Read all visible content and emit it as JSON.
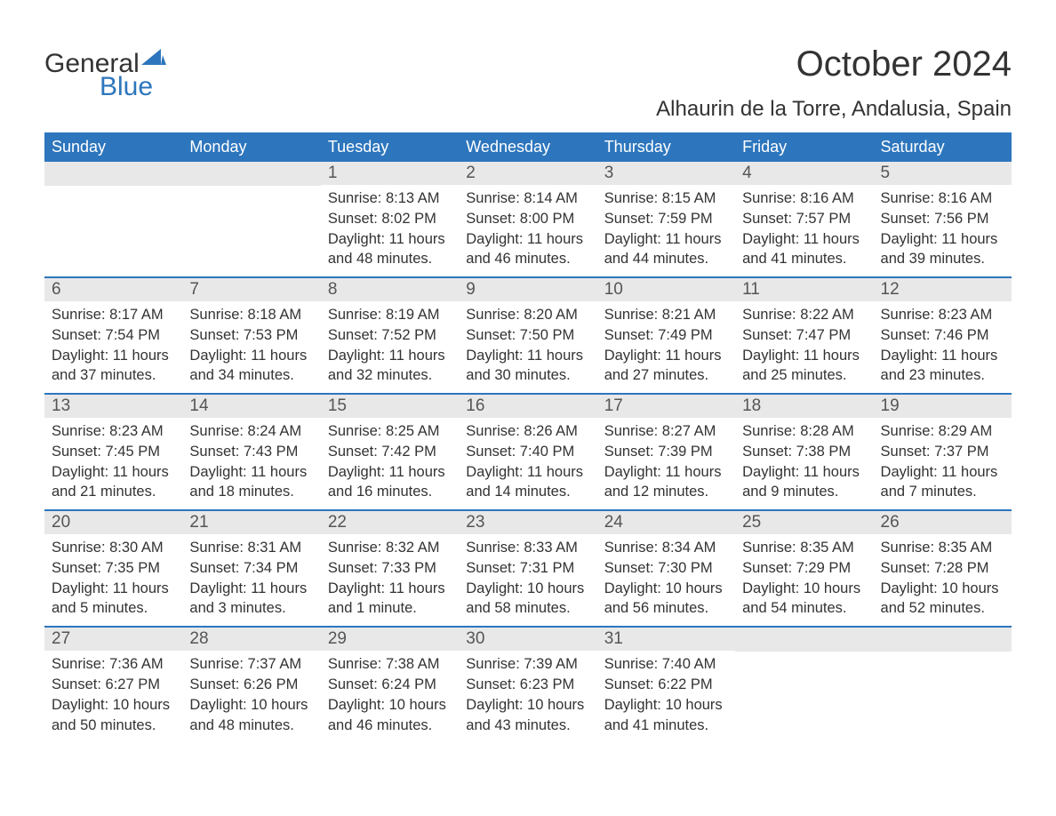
{
  "logo": {
    "text_general": "General",
    "text_blue": "Blue",
    "sail_color": "#2d76bd"
  },
  "title": "October 2024",
  "location": "Alhaurin de la Torre, Andalusia, Spain",
  "colors": {
    "header_bg": "#2d76bd",
    "header_text": "#ffffff",
    "daynum_bg": "#e8e8e8",
    "body_text": "#333333",
    "row_border": "#2d76bd"
  },
  "day_headers": [
    "Sunday",
    "Monday",
    "Tuesday",
    "Wednesday",
    "Thursday",
    "Friday",
    "Saturday"
  ],
  "weeks": [
    [
      {
        "num": "",
        "sunrise": "",
        "sunset": "",
        "daylight": ""
      },
      {
        "num": "",
        "sunrise": "",
        "sunset": "",
        "daylight": ""
      },
      {
        "num": "1",
        "sunrise": "Sunrise: 8:13 AM",
        "sunset": "Sunset: 8:02 PM",
        "daylight": "Daylight: 11 hours and 48 minutes."
      },
      {
        "num": "2",
        "sunrise": "Sunrise: 8:14 AM",
        "sunset": "Sunset: 8:00 PM",
        "daylight": "Daylight: 11 hours and 46 minutes."
      },
      {
        "num": "3",
        "sunrise": "Sunrise: 8:15 AM",
        "sunset": "Sunset: 7:59 PM",
        "daylight": "Daylight: 11 hours and 44 minutes."
      },
      {
        "num": "4",
        "sunrise": "Sunrise: 8:16 AM",
        "sunset": "Sunset: 7:57 PM",
        "daylight": "Daylight: 11 hours and 41 minutes."
      },
      {
        "num": "5",
        "sunrise": "Sunrise: 8:16 AM",
        "sunset": "Sunset: 7:56 PM",
        "daylight": "Daylight: 11 hours and 39 minutes."
      }
    ],
    [
      {
        "num": "6",
        "sunrise": "Sunrise: 8:17 AM",
        "sunset": "Sunset: 7:54 PM",
        "daylight": "Daylight: 11 hours and 37 minutes."
      },
      {
        "num": "7",
        "sunrise": "Sunrise: 8:18 AM",
        "sunset": "Sunset: 7:53 PM",
        "daylight": "Daylight: 11 hours and 34 minutes."
      },
      {
        "num": "8",
        "sunrise": "Sunrise: 8:19 AM",
        "sunset": "Sunset: 7:52 PM",
        "daylight": "Daylight: 11 hours and 32 minutes."
      },
      {
        "num": "9",
        "sunrise": "Sunrise: 8:20 AM",
        "sunset": "Sunset: 7:50 PM",
        "daylight": "Daylight: 11 hours and 30 minutes."
      },
      {
        "num": "10",
        "sunrise": "Sunrise: 8:21 AM",
        "sunset": "Sunset: 7:49 PM",
        "daylight": "Daylight: 11 hours and 27 minutes."
      },
      {
        "num": "11",
        "sunrise": "Sunrise: 8:22 AM",
        "sunset": "Sunset: 7:47 PM",
        "daylight": "Daylight: 11 hours and 25 minutes."
      },
      {
        "num": "12",
        "sunrise": "Sunrise: 8:23 AM",
        "sunset": "Sunset: 7:46 PM",
        "daylight": "Daylight: 11 hours and 23 minutes."
      }
    ],
    [
      {
        "num": "13",
        "sunrise": "Sunrise: 8:23 AM",
        "sunset": "Sunset: 7:45 PM",
        "daylight": "Daylight: 11 hours and 21 minutes."
      },
      {
        "num": "14",
        "sunrise": "Sunrise: 8:24 AM",
        "sunset": "Sunset: 7:43 PM",
        "daylight": "Daylight: 11 hours and 18 minutes."
      },
      {
        "num": "15",
        "sunrise": "Sunrise: 8:25 AM",
        "sunset": "Sunset: 7:42 PM",
        "daylight": "Daylight: 11 hours and 16 minutes."
      },
      {
        "num": "16",
        "sunrise": "Sunrise: 8:26 AM",
        "sunset": "Sunset: 7:40 PM",
        "daylight": "Daylight: 11 hours and 14 minutes."
      },
      {
        "num": "17",
        "sunrise": "Sunrise: 8:27 AM",
        "sunset": "Sunset: 7:39 PM",
        "daylight": "Daylight: 11 hours and 12 minutes."
      },
      {
        "num": "18",
        "sunrise": "Sunrise: 8:28 AM",
        "sunset": "Sunset: 7:38 PM",
        "daylight": "Daylight: 11 hours and 9 minutes."
      },
      {
        "num": "19",
        "sunrise": "Sunrise: 8:29 AM",
        "sunset": "Sunset: 7:37 PM",
        "daylight": "Daylight: 11 hours and 7 minutes."
      }
    ],
    [
      {
        "num": "20",
        "sunrise": "Sunrise: 8:30 AM",
        "sunset": "Sunset: 7:35 PM",
        "daylight": "Daylight: 11 hours and 5 minutes."
      },
      {
        "num": "21",
        "sunrise": "Sunrise: 8:31 AM",
        "sunset": "Sunset: 7:34 PM",
        "daylight": "Daylight: 11 hours and 3 minutes."
      },
      {
        "num": "22",
        "sunrise": "Sunrise: 8:32 AM",
        "sunset": "Sunset: 7:33 PM",
        "daylight": "Daylight: 11 hours and 1 minute."
      },
      {
        "num": "23",
        "sunrise": "Sunrise: 8:33 AM",
        "sunset": "Sunset: 7:31 PM",
        "daylight": "Daylight: 10 hours and 58 minutes."
      },
      {
        "num": "24",
        "sunrise": "Sunrise: 8:34 AM",
        "sunset": "Sunset: 7:30 PM",
        "daylight": "Daylight: 10 hours and 56 minutes."
      },
      {
        "num": "25",
        "sunrise": "Sunrise: 8:35 AM",
        "sunset": "Sunset: 7:29 PM",
        "daylight": "Daylight: 10 hours and 54 minutes."
      },
      {
        "num": "26",
        "sunrise": "Sunrise: 8:35 AM",
        "sunset": "Sunset: 7:28 PM",
        "daylight": "Daylight: 10 hours and 52 minutes."
      }
    ],
    [
      {
        "num": "27",
        "sunrise": "Sunrise: 7:36 AM",
        "sunset": "Sunset: 6:27 PM",
        "daylight": "Daylight: 10 hours and 50 minutes."
      },
      {
        "num": "28",
        "sunrise": "Sunrise: 7:37 AM",
        "sunset": "Sunset: 6:26 PM",
        "daylight": "Daylight: 10 hours and 48 minutes."
      },
      {
        "num": "29",
        "sunrise": "Sunrise: 7:38 AM",
        "sunset": "Sunset: 6:24 PM",
        "daylight": "Daylight: 10 hours and 46 minutes."
      },
      {
        "num": "30",
        "sunrise": "Sunrise: 7:39 AM",
        "sunset": "Sunset: 6:23 PM",
        "daylight": "Daylight: 10 hours and 43 minutes."
      },
      {
        "num": "31",
        "sunrise": "Sunrise: 7:40 AM",
        "sunset": "Sunset: 6:22 PM",
        "daylight": "Daylight: 10 hours and 41 minutes."
      },
      {
        "num": "",
        "sunrise": "",
        "sunset": "",
        "daylight": ""
      },
      {
        "num": "",
        "sunrise": "",
        "sunset": "",
        "daylight": ""
      }
    ]
  ]
}
